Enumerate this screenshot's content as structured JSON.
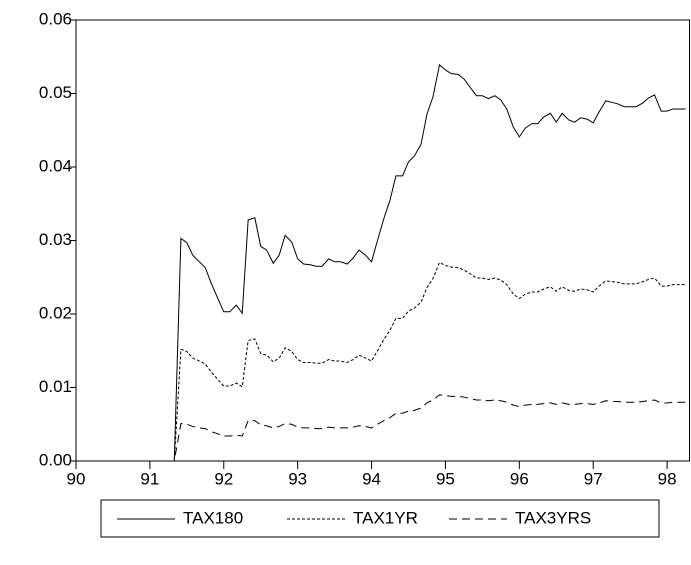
{
  "chart_data": {
    "type": "line",
    "x": [
      90,
      91.33,
      91.42,
      91.5,
      91.58,
      91.67,
      91.75,
      91.83,
      91.92,
      92,
      92.08,
      92.17,
      92.25,
      92.33,
      92.42,
      92.5,
      92.58,
      92.67,
      92.75,
      92.83,
      92.92,
      93,
      93.08,
      93.17,
      93.25,
      93.33,
      93.42,
      93.5,
      93.58,
      93.67,
      93.75,
      93.83,
      93.92,
      94,
      94.08,
      94.17,
      94.25,
      94.33,
      94.42,
      94.5,
      94.58,
      94.67,
      94.75,
      94.83,
      94.92,
      95,
      95.08,
      95.17,
      95.25,
      95.33,
      95.42,
      95.5,
      95.58,
      95.67,
      95.75,
      95.83,
      95.92,
      96,
      96.08,
      96.17,
      96.25,
      96.33,
      96.42,
      96.5,
      96.58,
      96.67,
      96.75,
      96.83,
      96.92,
      97,
      97.08,
      97.17,
      97.25,
      97.33,
      97.42,
      97.5,
      97.58,
      97.67,
      97.75,
      97.83,
      97.92,
      98,
      98.08,
      98.17,
      98.25
    ],
    "series": [
      {
        "name": "TAX180",
        "color": "#000000",
        "style": "solid",
        "values": [
          0,
          0,
          0.0303,
          0.0297,
          0.028,
          0.0271,
          0.0263,
          0.0242,
          0.0221,
          0.0203,
          0.0203,
          0.0212,
          0.0201,
          0.0328,
          0.0331,
          0.0292,
          0.0287,
          0.0269,
          0.028,
          0.0307,
          0.0298,
          0.0275,
          0.0268,
          0.0267,
          0.0265,
          0.0265,
          0.0275,
          0.0271,
          0.0271,
          0.0268,
          0.0276,
          0.0287,
          0.028,
          0.0271,
          0.03,
          0.0331,
          0.0355,
          0.0388,
          0.0388,
          0.0407,
          0.0415,
          0.0431,
          0.0472,
          0.0495,
          0.0539,
          0.0532,
          0.0527,
          0.0526,
          0.052,
          0.0509,
          0.0497,
          0.0497,
          0.0493,
          0.0497,
          0.0491,
          0.0479,
          0.0454,
          0.0441,
          0.0453,
          0.0459,
          0.0459,
          0.0468,
          0.0473,
          0.0461,
          0.0473,
          0.0464,
          0.0461,
          0.0467,
          0.0465,
          0.046,
          0.0475,
          0.049,
          0.0488,
          0.0486,
          0.0482,
          0.0482,
          0.0482,
          0.0487,
          0.0494,
          0.0498,
          0.0476,
          0.0476,
          0.0479,
          0.0479,
          0.0479
        ]
      },
      {
        "name": "TAX1YR",
        "color": "#000000",
        "style": "dotted",
        "values": [
          0,
          0,
          0.0152,
          0.0149,
          0.014,
          0.0136,
          0.0132,
          0.0121,
          0.0111,
          0.0102,
          0.0102,
          0.0106,
          0.0101,
          0.0164,
          0.0166,
          0.0146,
          0.0144,
          0.0135,
          0.014,
          0.0154,
          0.0149,
          0.0138,
          0.0134,
          0.0134,
          0.0133,
          0.0133,
          0.0138,
          0.0136,
          0.0136,
          0.0134,
          0.0138,
          0.0144,
          0.014,
          0.0136,
          0.015,
          0.0166,
          0.0178,
          0.0194,
          0.0194,
          0.0204,
          0.0208,
          0.0216,
          0.0236,
          0.0248,
          0.027,
          0.0266,
          0.0264,
          0.0263,
          0.026,
          0.0255,
          0.0249,
          0.0249,
          0.0247,
          0.0249,
          0.0246,
          0.024,
          0.0227,
          0.0221,
          0.0227,
          0.023,
          0.023,
          0.0234,
          0.0237,
          0.0231,
          0.0237,
          0.0232,
          0.0231,
          0.0234,
          0.0233,
          0.023,
          0.0238,
          0.0245,
          0.0244,
          0.0243,
          0.0241,
          0.0241,
          0.0241,
          0.0244,
          0.0247,
          0.0249,
          0.0238,
          0.0238,
          0.024,
          0.024,
          0.024
        ]
      },
      {
        "name": "TAX3YRS",
        "color": "#000000",
        "style": "dashed",
        "values": [
          0,
          0,
          0.0051,
          0.005,
          0.0047,
          0.0045,
          0.0044,
          0.004,
          0.0037,
          0.0034,
          0.0034,
          0.0035,
          0.0034,
          0.0055,
          0.0055,
          0.0049,
          0.0048,
          0.0045,
          0.0047,
          0.0051,
          0.005,
          0.0046,
          0.0045,
          0.0045,
          0.0044,
          0.0044,
          0.0046,
          0.0045,
          0.0045,
          0.0045,
          0.0046,
          0.0048,
          0.0047,
          0.0045,
          0.005,
          0.0055,
          0.0059,
          0.0065,
          0.0065,
          0.0068,
          0.0069,
          0.0072,
          0.0079,
          0.0083,
          0.009,
          0.0089,
          0.0088,
          0.0088,
          0.0087,
          0.0085,
          0.0083,
          0.0083,
          0.0082,
          0.0083,
          0.0082,
          0.008,
          0.0076,
          0.0074,
          0.0076,
          0.0077,
          0.0077,
          0.0078,
          0.0079,
          0.0077,
          0.0079,
          0.0077,
          0.0077,
          0.0078,
          0.0078,
          0.0077,
          0.0079,
          0.0082,
          0.0081,
          0.0081,
          0.008,
          0.008,
          0.008,
          0.0081,
          0.0082,
          0.0083,
          0.0079,
          0.0079,
          0.008,
          0.008,
          0.008
        ]
      }
    ],
    "xlim": [
      90,
      98.31
    ],
    "xticks": [
      90,
      91,
      92,
      93,
      94,
      95,
      96,
      97,
      98
    ],
    "ylim": [
      0,
      0.06
    ],
    "yticks": [
      {
        "value": 0,
        "label": "0.00"
      },
      0.01,
      0.02,
      0.03,
      0.04,
      0.05,
      0.06
    ],
    "legend": "bottom"
  }
}
